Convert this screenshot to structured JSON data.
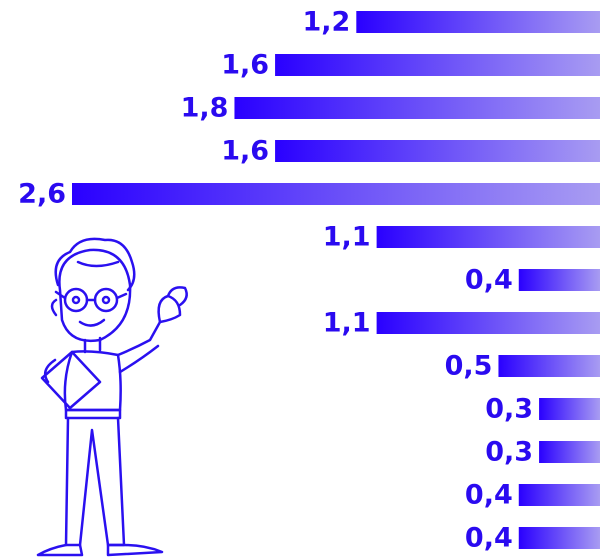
{
  "chart_data": {
    "type": "bar",
    "orientation": "horizontal",
    "values": [
      1.2,
      1.6,
      1.8,
      1.6,
      2.6,
      1.1,
      0.4,
      1.1,
      0.5,
      0.3,
      0.3,
      0.4,
      0.4
    ],
    "value_labels": [
      "1,2",
      "1,6",
      "1,8",
      "1,6",
      "2,6",
      "1,1",
      "0,4",
      "1,1",
      "0,5",
      "0,3",
      "0,3",
      "0,4",
      "0,4"
    ],
    "color": "#2a00ff"
  }
}
